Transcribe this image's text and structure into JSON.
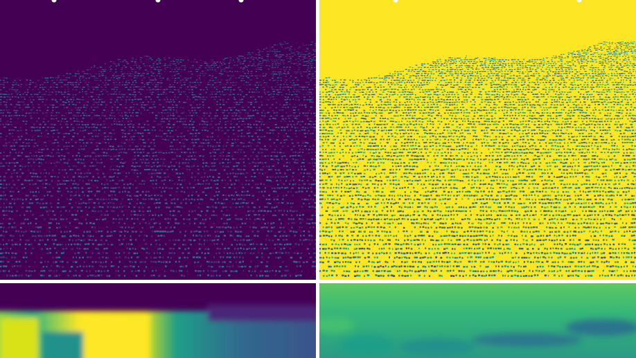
{
  "figure": {
    "panels": [
      {
        "name": "sparse-depth-panel",
        "colormap": "viridis",
        "base_color": "#440154",
        "point_color": "#3b528b"
      },
      {
        "name": "sparse-error-panel",
        "colormap": "viridis",
        "base_color": "#fde725",
        "point_color": "#2c728e"
      },
      {
        "name": "dense-depth-panel",
        "colormap": "viridis",
        "base_color": "#440154"
      },
      {
        "name": "dense-error-panel",
        "colormap": "viridis",
        "base_color": "#5ec962"
      }
    ],
    "divider_color": "#ffffff"
  }
}
